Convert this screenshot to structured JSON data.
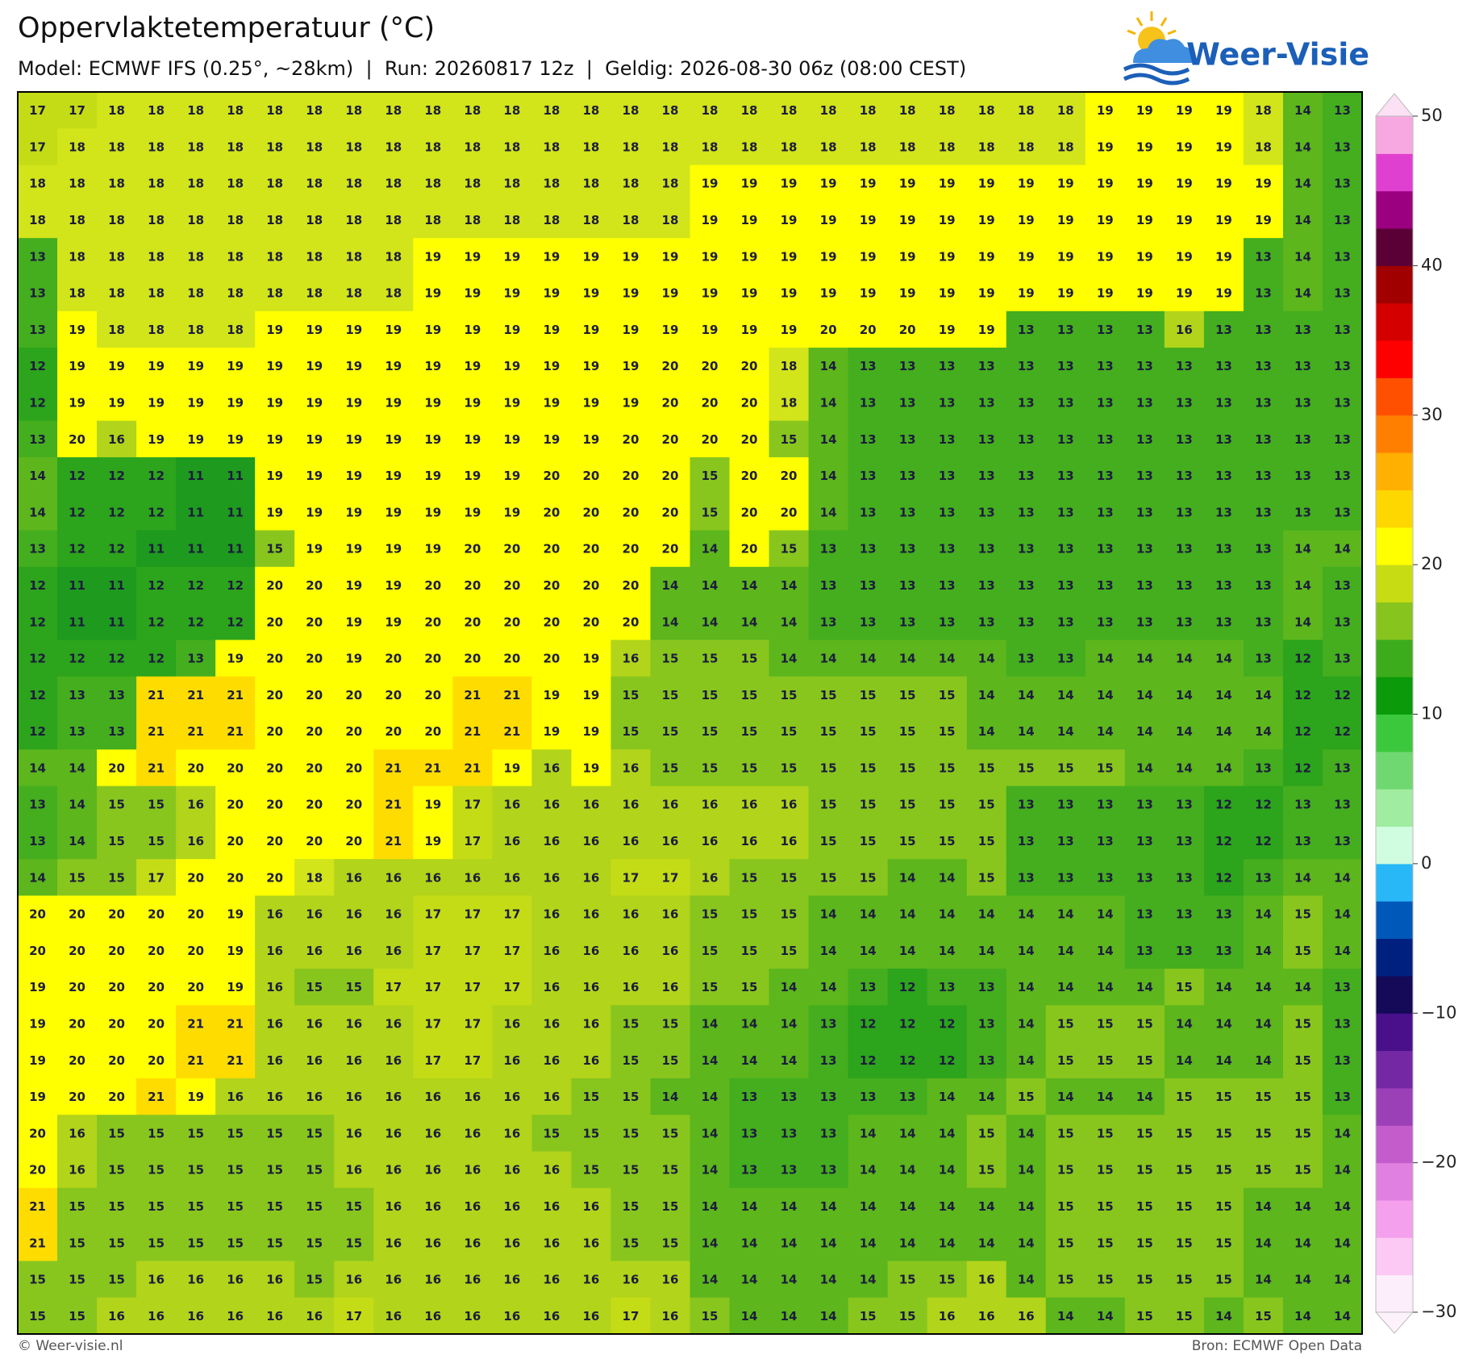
{
  "header": {
    "title": "Oppervlaktetemperatuur (°C)",
    "subtitle": "Model: ECMWF IFS (0.25°, ~28km)  |  Run: 20260817 12z  |  Geldig: 2026-08-30 06z (08:00 CEST)",
    "logo": "Weer-Visie"
  },
  "map": {
    "rows": [
      [
        17,
        17,
        18,
        18,
        18,
        18,
        18,
        18,
        18,
        18,
        18,
        18,
        18,
        18,
        18,
        18,
        18,
        18,
        18,
        18,
        18,
        18,
        18,
        18,
        18,
        18,
        18,
        19,
        19,
        19,
        19,
        18,
        14,
        13
      ],
      [
        17,
        18,
        18,
        18,
        18,
        18,
        18,
        18,
        18,
        18,
        18,
        18,
        18,
        18,
        18,
        18,
        18,
        18,
        18,
        18,
        18,
        18,
        18,
        18,
        18,
        18,
        18,
        19,
        19,
        19,
        19,
        18,
        14,
        13
      ],
      [
        18,
        18,
        18,
        18,
        18,
        18,
        18,
        18,
        18,
        18,
        18,
        18,
        18,
        18,
        18,
        18,
        18,
        19,
        19,
        19,
        19,
        19,
        19,
        19,
        19,
        19,
        19,
        19,
        19,
        19,
        19,
        19,
        14,
        13
      ],
      [
        18,
        18,
        18,
        18,
        18,
        18,
        18,
        18,
        18,
        18,
        18,
        18,
        18,
        18,
        18,
        18,
        18,
        19,
        19,
        19,
        19,
        19,
        19,
        19,
        19,
        19,
        19,
        19,
        19,
        19,
        19,
        19,
        14,
        13
      ],
      [
        13,
        18,
        18,
        18,
        18,
        18,
        18,
        18,
        18,
        18,
        19,
        19,
        19,
        19,
        19,
        19,
        19,
        19,
        19,
        19,
        19,
        19,
        19,
        19,
        19,
        19,
        19,
        19,
        19,
        19,
        19,
        13,
        14,
        13
      ],
      [
        13,
        18,
        18,
        18,
        18,
        18,
        18,
        18,
        18,
        18,
        19,
        19,
        19,
        19,
        19,
        19,
        19,
        19,
        19,
        19,
        19,
        19,
        19,
        19,
        19,
        19,
        19,
        19,
        19,
        19,
        19,
        13,
        14,
        13
      ],
      [
        13,
        19,
        18,
        18,
        18,
        18,
        19,
        19,
        19,
        19,
        19,
        19,
        19,
        19,
        19,
        19,
        19,
        19,
        19,
        19,
        20,
        20,
        20,
        19,
        19,
        13,
        13,
        13,
        13,
        16,
        13,
        13,
        13,
        13
      ],
      [
        12,
        19,
        19,
        19,
        19,
        19,
        19,
        19,
        19,
        19,
        19,
        19,
        19,
        19,
        19,
        19,
        20,
        20,
        20,
        18,
        14,
        13,
        13,
        13,
        13,
        13,
        13,
        13,
        13,
        13,
        13,
        13,
        13,
        13
      ],
      [
        12,
        19,
        19,
        19,
        19,
        19,
        19,
        19,
        19,
        19,
        19,
        19,
        19,
        19,
        19,
        19,
        20,
        20,
        20,
        18,
        14,
        13,
        13,
        13,
        13,
        13,
        13,
        13,
        13,
        13,
        13,
        13,
        13,
        13
      ],
      [
        13,
        20,
        16,
        19,
        19,
        19,
        19,
        19,
        19,
        19,
        19,
        19,
        19,
        19,
        19,
        20,
        20,
        20,
        20,
        15,
        14,
        13,
        13,
        13,
        13,
        13,
        13,
        13,
        13,
        13,
        13,
        13,
        13,
        13
      ],
      [
        14,
        12,
        12,
        12,
        11,
        11,
        19,
        19,
        19,
        19,
        19,
        19,
        19,
        20,
        20,
        20,
        20,
        15,
        20,
        20,
        14,
        13,
        13,
        13,
        13,
        13,
        13,
        13,
        13,
        13,
        13,
        13,
        13,
        13
      ],
      [
        14,
        12,
        12,
        12,
        11,
        11,
        19,
        19,
        19,
        19,
        19,
        19,
        19,
        20,
        20,
        20,
        20,
        15,
        20,
        20,
        14,
        13,
        13,
        13,
        13,
        13,
        13,
        13,
        13,
        13,
        13,
        13,
        13,
        13
      ],
      [
        13,
        12,
        12,
        11,
        11,
        11,
        15,
        19,
        19,
        19,
        19,
        20,
        20,
        20,
        20,
        20,
        20,
        14,
        20,
        15,
        13,
        13,
        13,
        13,
        13,
        13,
        13,
        13,
        13,
        13,
        13,
        13,
        14,
        14
      ],
      [
        12,
        11,
        11,
        12,
        12,
        12,
        20,
        20,
        19,
        19,
        20,
        20,
        20,
        20,
        20,
        20,
        14,
        14,
        14,
        14,
        13,
        13,
        13,
        13,
        13,
        13,
        13,
        13,
        13,
        13,
        13,
        13,
        14,
        13
      ],
      [
        12,
        11,
        11,
        12,
        12,
        12,
        20,
        20,
        19,
        19,
        20,
        20,
        20,
        20,
        20,
        20,
        14,
        14,
        14,
        14,
        13,
        13,
        13,
        13,
        13,
        13,
        13,
        13,
        13,
        13,
        13,
        13,
        14,
        13
      ],
      [
        12,
        12,
        12,
        12,
        13,
        19,
        20,
        20,
        19,
        20,
        20,
        20,
        20,
        20,
        19,
        16,
        15,
        15,
        15,
        14,
        14,
        14,
        14,
        14,
        14,
        13,
        13,
        14,
        14,
        14,
        14,
        13,
        12,
        13
      ],
      [
        12,
        13,
        13,
        21,
        21,
        21,
        20,
        20,
        20,
        20,
        20,
        21,
        21,
        19,
        19,
        15,
        15,
        15,
        15,
        15,
        15,
        15,
        15,
        15,
        14,
        14,
        14,
        14,
        14,
        14,
        14,
        14,
        12,
        12
      ],
      [
        12,
        13,
        13,
        21,
        21,
        21,
        20,
        20,
        20,
        20,
        20,
        21,
        21,
        19,
        19,
        15,
        15,
        15,
        15,
        15,
        15,
        15,
        15,
        15,
        14,
        14,
        14,
        14,
        14,
        14,
        14,
        14,
        12,
        12
      ],
      [
        14,
        14,
        20,
        21,
        20,
        20,
        20,
        20,
        20,
        21,
        21,
        21,
        19,
        16,
        19,
        16,
        15,
        15,
        15,
        15,
        15,
        15,
        15,
        15,
        15,
        15,
        15,
        15,
        14,
        14,
        14,
        13,
        12,
        13
      ],
      [
        13,
        14,
        15,
        15,
        16,
        20,
        20,
        20,
        20,
        21,
        19,
        17,
        16,
        16,
        16,
        16,
        16,
        16,
        16,
        16,
        15,
        15,
        15,
        15,
        15,
        13,
        13,
        13,
        13,
        13,
        12,
        12,
        13,
        13
      ],
      [
        13,
        14,
        15,
        15,
        16,
        20,
        20,
        20,
        20,
        21,
        19,
        17,
        16,
        16,
        16,
        16,
        16,
        16,
        16,
        16,
        15,
        15,
        15,
        15,
        15,
        13,
        13,
        13,
        13,
        13,
        12,
        12,
        13,
        13
      ],
      [
        14,
        15,
        15,
        17,
        20,
        20,
        20,
        18,
        16,
        16,
        16,
        16,
        16,
        16,
        16,
        17,
        17,
        16,
        15,
        15,
        15,
        15,
        14,
        14,
        15,
        13,
        13,
        13,
        13,
        13,
        12,
        13,
        14,
        14
      ],
      [
        20,
        20,
        20,
        20,
        20,
        19,
        16,
        16,
        16,
        16,
        17,
        17,
        17,
        16,
        16,
        16,
        16,
        15,
        15,
        15,
        14,
        14,
        14,
        14,
        14,
        14,
        14,
        14,
        13,
        13,
        13,
        14,
        15,
        14
      ],
      [
        20,
        20,
        20,
        20,
        20,
        19,
        16,
        16,
        16,
        16,
        17,
        17,
        17,
        16,
        16,
        16,
        16,
        15,
        15,
        15,
        14,
        14,
        14,
        14,
        14,
        14,
        14,
        14,
        13,
        13,
        13,
        14,
        15,
        14
      ],
      [
        19,
        20,
        20,
        20,
        20,
        19,
        16,
        15,
        15,
        17,
        17,
        17,
        17,
        16,
        16,
        16,
        16,
        15,
        15,
        14,
        14,
        13,
        12,
        13,
        13,
        14,
        14,
        14,
        14,
        15,
        14,
        14,
        14,
        13
      ],
      [
        19,
        20,
        20,
        20,
        21,
        21,
        16,
        16,
        16,
        16,
        17,
        17,
        16,
        16,
        16,
        15,
        15,
        14,
        14,
        14,
        13,
        12,
        12,
        12,
        13,
        14,
        15,
        15,
        15,
        14,
        14,
        14,
        15,
        13
      ],
      [
        19,
        20,
        20,
        20,
        21,
        21,
        16,
        16,
        16,
        16,
        17,
        17,
        16,
        16,
        16,
        15,
        15,
        14,
        14,
        14,
        13,
        12,
        12,
        12,
        13,
        14,
        15,
        15,
        15,
        14,
        14,
        14,
        15,
        13
      ],
      [
        19,
        20,
        20,
        21,
        19,
        16,
        16,
        16,
        16,
        16,
        16,
        16,
        16,
        16,
        15,
        15,
        14,
        14,
        13,
        13,
        13,
        13,
        13,
        14,
        14,
        15,
        14,
        14,
        14,
        15,
        15,
        15,
        15,
        13
      ],
      [
        20,
        16,
        15,
        15,
        15,
        15,
        15,
        15,
        16,
        16,
        16,
        16,
        16,
        15,
        15,
        15,
        15,
        14,
        13,
        13,
        13,
        14,
        14,
        14,
        15,
        14,
        15,
        15,
        15,
        15,
        15,
        15,
        15,
        14
      ],
      [
        20,
        16,
        15,
        15,
        15,
        15,
        15,
        15,
        16,
        16,
        16,
        16,
        16,
        16,
        15,
        15,
        15,
        14,
        13,
        13,
        13,
        14,
        14,
        14,
        15,
        14,
        15,
        15,
        15,
        15,
        15,
        15,
        15,
        14
      ],
      [
        21,
        15,
        15,
        15,
        15,
        15,
        15,
        15,
        15,
        16,
        16,
        16,
        16,
        16,
        16,
        15,
        15,
        14,
        14,
        14,
        14,
        14,
        14,
        14,
        14,
        14,
        15,
        15,
        15,
        15,
        15,
        14,
        14,
        14
      ],
      [
        21,
        15,
        15,
        15,
        15,
        15,
        15,
        15,
        15,
        16,
        16,
        16,
        16,
        16,
        16,
        15,
        15,
        14,
        14,
        14,
        14,
        14,
        14,
        14,
        14,
        14,
        15,
        15,
        15,
        15,
        15,
        14,
        14,
        14
      ],
      [
        15,
        15,
        15,
        16,
        16,
        16,
        16,
        15,
        16,
        16,
        16,
        16,
        16,
        16,
        16,
        16,
        16,
        14,
        14,
        14,
        14,
        14,
        15,
        15,
        16,
        14,
        15,
        15,
        15,
        15,
        15,
        14,
        14,
        14
      ],
      [
        15,
        15,
        16,
        16,
        16,
        16,
        16,
        16,
        17,
        16,
        16,
        16,
        16,
        16,
        16,
        17,
        16,
        15,
        14,
        14,
        14,
        15,
        15,
        16,
        16,
        16,
        14,
        14,
        15,
        15,
        14,
        15,
        14,
        14
      ]
    ]
  },
  "colorbar": {
    "range": [
      -30,
      50
    ],
    "ticks": [
      50,
      40,
      30,
      20,
      10,
      0,
      {
        "value": -10,
        "label": "−10"
      },
      {
        "value": -20,
        "label": "−20"
      },
      {
        "value": -30,
        "label": "−30"
      }
    ],
    "colors": [
      "#fdeefb",
      "#fcc8f4",
      "#f5a0ec",
      "#e080e0",
      "#c45ccc",
      "#9c40b8",
      "#7428a4",
      "#4a108c",
      "#140a58",
      "#002080",
      "#0058b8",
      "#28b8f8",
      "#d0fce0",
      "#a0eca0",
      "#70d870",
      "#3cc83c",
      "#0a9a0a",
      "#3cac1c",
      "#88c41e",
      "#c8dc14",
      "#ffff00",
      "#ffd700",
      "#ffb000",
      "#ff8000",
      "#ff5000",
      "#ff0000",
      "#d40000",
      "#a00000",
      "#5a0036",
      "#9a0080",
      "#e040d0",
      "#f8a8e0"
    ]
  },
  "footer": {
    "credit": "© Weer-visie.nl",
    "source": "Bron: ECMWF Open Data"
  }
}
